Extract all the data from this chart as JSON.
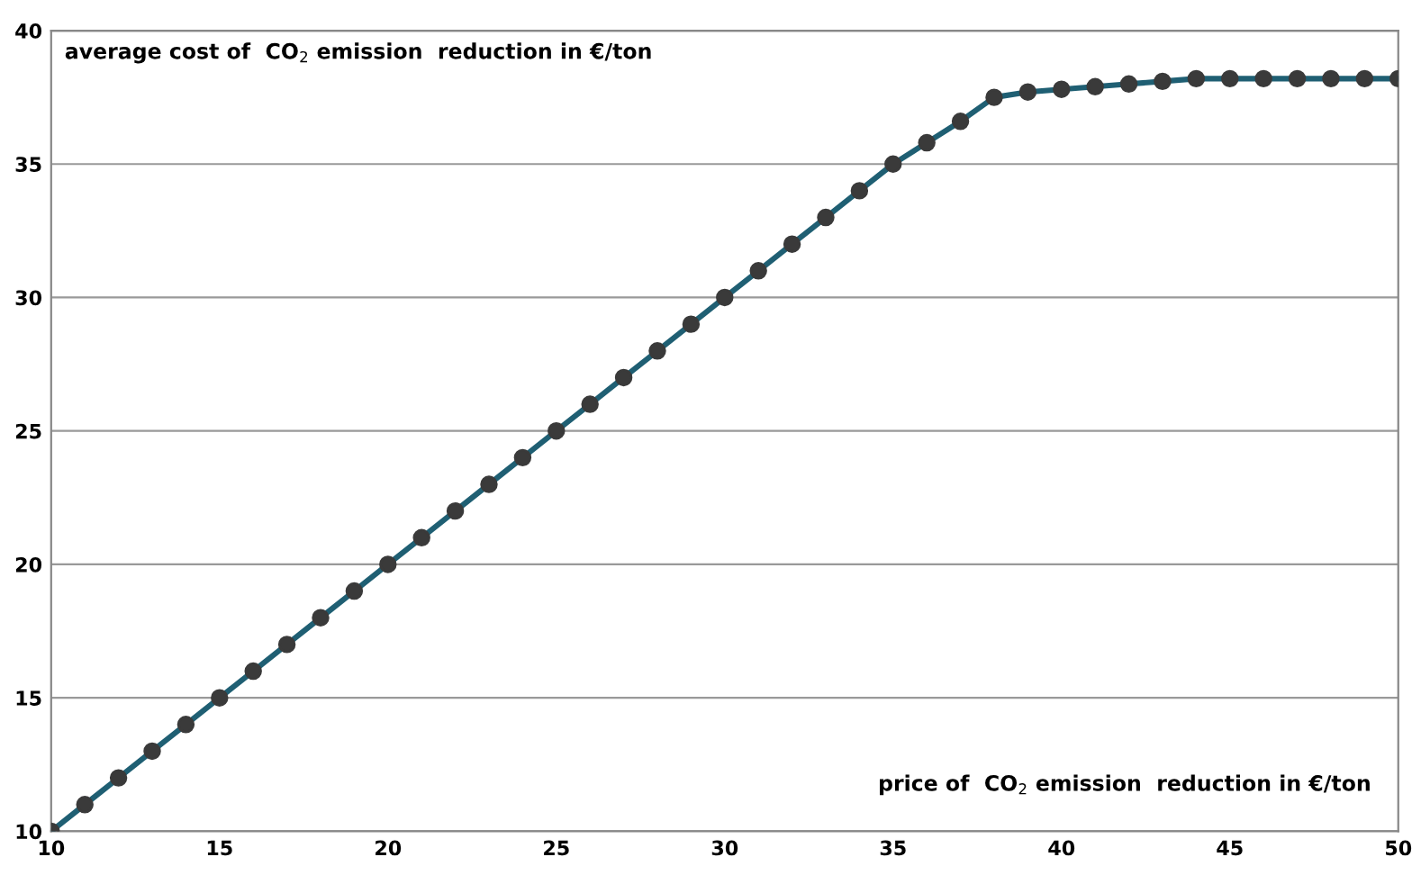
{
  "chart_data": {
    "type": "line",
    "xlabel": "price of  CO$_{2}$ emission  reduction in €/ton",
    "ylabel": "average cost of  CO$_{2}$ emission  reduction in €/ton",
    "x": [
      10,
      11,
      12,
      13,
      14,
      15,
      16,
      17,
      18,
      19,
      20,
      21,
      22,
      23,
      24,
      25,
      26,
      27,
      28,
      29,
      30,
      31,
      32,
      33,
      34,
      35,
      36,
      37,
      38,
      39,
      40,
      41,
      42,
      43,
      44,
      45,
      46,
      47,
      48,
      49,
      50
    ],
    "series": [
      {
        "color": "#1f5f73",
        "values": [
          10,
          11,
          12,
          13,
          14,
          15,
          16,
          17,
          18,
          19,
          20,
          21,
          22,
          23,
          24,
          25,
          26,
          27,
          28,
          29,
          30,
          31,
          32,
          33,
          34,
          35,
          35.8,
          36.6,
          37.5,
          37.7,
          37.8,
          37.9,
          38.0,
          38.1,
          38.2,
          38.2,
          38.2,
          38.2,
          38.2,
          38.2,
          38.2
        ]
      }
    ],
    "marker": "circle",
    "line_style": "solid",
    "xlim": [
      10,
      50
    ],
    "xticks": [
      10,
      15,
      20,
      25,
      30,
      35,
      40,
      45,
      50
    ],
    "ylim": [
      10,
      40
    ],
    "yticks": [
      10,
      15,
      20,
      25,
      30,
      35,
      40
    ],
    "grid": "y",
    "legend": false
  }
}
